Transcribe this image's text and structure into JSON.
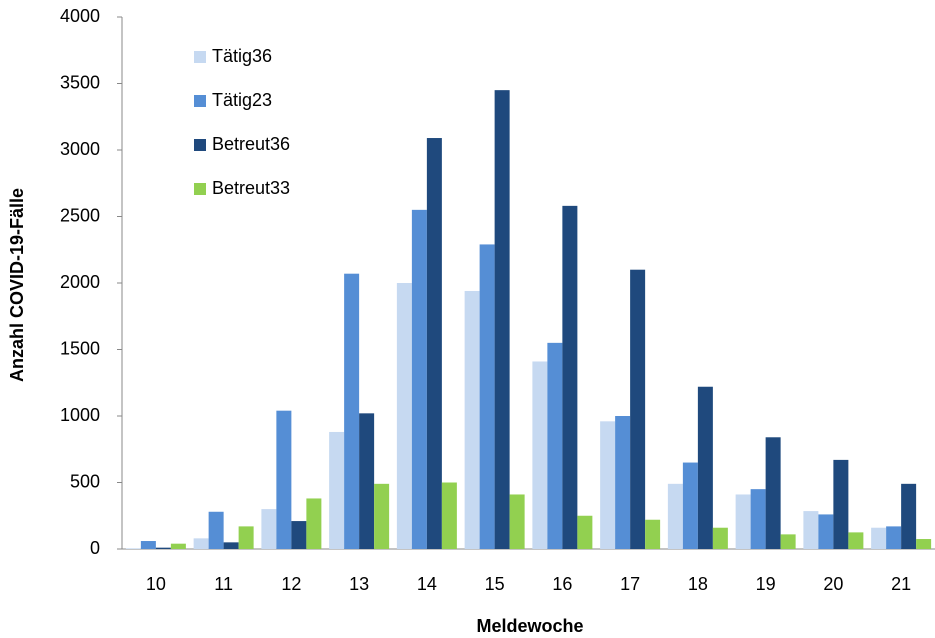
{
  "chart_data": {
    "type": "bar",
    "x_label": "Meldewoche",
    "y_label": "Anzahl COVID-19-Fälle",
    "categories": [
      "10",
      "11",
      "12",
      "13",
      "14",
      "15",
      "16",
      "17",
      "18",
      "19",
      "20",
      "21"
    ],
    "series": [
      {
        "name": "Tätig36",
        "color": "#c6d9f1",
        "values": [
          5,
          80,
          300,
          880,
          2000,
          1940,
          1410,
          960,
          490,
          410,
          285,
          160
        ]
      },
      {
        "name": "Tätig23",
        "color": "#558ed5",
        "values": [
          60,
          280,
          1040,
          2070,
          2550,
          2290,
          1550,
          1000,
          650,
          450,
          260,
          170
        ]
      },
      {
        "name": "Betreut36",
        "color": "#1f497d",
        "values": [
          10,
          50,
          210,
          1020,
          3090,
          3450,
          2580,
          2100,
          1220,
          840,
          670,
          490
        ]
      },
      {
        "name": "Betreut33",
        "color": "#92d050",
        "values": [
          40,
          170,
          380,
          490,
          500,
          410,
          250,
          220,
          160,
          110,
          125,
          75
        ]
      }
    ],
    "ylim": [
      0,
      4000
    ],
    "yticks": [
      0,
      500,
      1000,
      1500,
      2000,
      2500,
      3000,
      3500,
      4000
    ],
    "grid": false,
    "legend": "top-left"
  }
}
